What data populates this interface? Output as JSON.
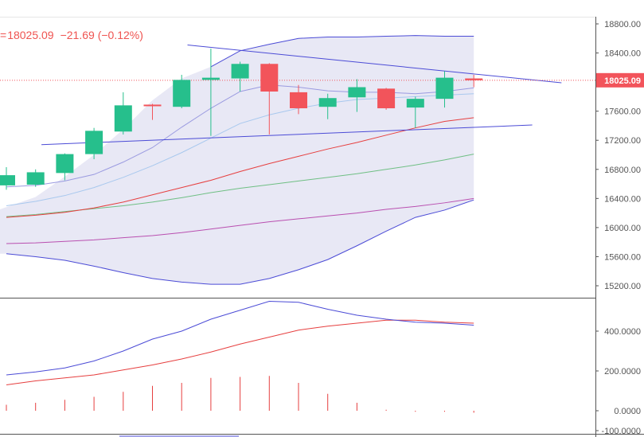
{
  "header": {
    "prefix": "=",
    "price": "18025.09",
    "change": "−21.69 (−0.12%)"
  },
  "colors": {
    "up": "#26bf8c",
    "down": "#f2545b",
    "band_fill": "#dcdcf0",
    "band_line": "#4b4bd6",
    "trendline": "#4b4bd6",
    "ma_fast": "#9a9ae0",
    "ma_mid": "#a8c8ee",
    "ma_red": "#e63f3f",
    "ma_green": "#6fbf84",
    "ma_purple": "#b94fb0",
    "macd": "#4b4bd6",
    "signal": "#e63f3f",
    "hist": "#e63f3f",
    "price_line": "#f2545b"
  },
  "chart_data": [
    {
      "type": "candlestick",
      "title": "",
      "y_ticks": [
        "18800.00",
        "18400.00",
        "18000.00",
        "17600.00",
        "17200.00",
        "16800.00",
        "16400.00",
        "16000.00",
        "15600.00",
        "15200.00"
      ],
      "ylim": [
        15050,
        18900
      ],
      "last_price_label": "18025.09",
      "last_price": 18025.09,
      "candles": [
        {
          "o": 16580,
          "h": 16830,
          "l": 16520,
          "c": 16720
        },
        {
          "o": 16590,
          "h": 16800,
          "l": 16560,
          "c": 16760
        },
        {
          "o": 16750,
          "h": 17020,
          "l": 16650,
          "c": 17010
        },
        {
          "o": 17010,
          "h": 17370,
          "l": 16940,
          "c": 17330
        },
        {
          "o": 17320,
          "h": 17860,
          "l": 17280,
          "c": 17680
        },
        {
          "o": 17690,
          "h": 17700,
          "l": 17480,
          "c": 17670
        },
        {
          "o": 17660,
          "h": 18100,
          "l": 17640,
          "c": 18030
        },
        {
          "o": 18030,
          "h": 18460,
          "l": 17260,
          "c": 18060
        },
        {
          "o": 18050,
          "h": 18280,
          "l": 17870,
          "c": 18250
        },
        {
          "o": 18250,
          "h": 18260,
          "l": 17280,
          "c": 17870
        },
        {
          "o": 17860,
          "h": 17960,
          "l": 17560,
          "c": 17640
        },
        {
          "o": 17660,
          "h": 17840,
          "l": 17490,
          "c": 17780
        },
        {
          "o": 17790,
          "h": 18040,
          "l": 17590,
          "c": 17930
        },
        {
          "o": 17910,
          "h": 17920,
          "l": 17620,
          "c": 17640
        },
        {
          "o": 17650,
          "h": 17800,
          "l": 17370,
          "c": 17770
        },
        {
          "o": 17770,
          "h": 18150,
          "l": 17650,
          "c": 18060
        },
        {
          "o": 18050,
          "h": 18100,
          "l": 17930,
          "c": 18025
        }
      ],
      "bollinger_upper": [
        null,
        null,
        null,
        null,
        null,
        null,
        null,
        18210,
        18430,
        18520,
        18600,
        18620,
        18620,
        18630,
        18640,
        18630,
        18630
      ],
      "bollinger_lower": [
        15640,
        15600,
        15550,
        15470,
        15380,
        15300,
        15250,
        15220,
        15220,
        15300,
        15420,
        15560,
        15750,
        15950,
        16140,
        16240,
        16380
      ],
      "ma_fast": [
        16560,
        16580,
        16640,
        16730,
        16900,
        17100,
        17380,
        17640,
        17870,
        17960,
        17930,
        17880,
        17860,
        17860,
        17840,
        17870,
        17920
      ],
      "ma_mid": [
        16300,
        16360,
        16440,
        16550,
        16690,
        16850,
        17030,
        17230,
        17430,
        17550,
        17640,
        17710,
        17760,
        17780,
        17800,
        17820,
        17840
      ],
      "ma_red": [
        16140,
        16170,
        16210,
        16270,
        16350,
        16450,
        16550,
        16650,
        16770,
        16880,
        16980,
        17080,
        17170,
        17270,
        17370,
        17460,
        17510
      ],
      "ma_green": [
        16150,
        16180,
        16220,
        16260,
        16300,
        16350,
        16410,
        16480,
        16540,
        16590,
        16640,
        16690,
        16740,
        16800,
        16860,
        16930,
        17010
      ],
      "ma_purple": [
        15780,
        15790,
        15810,
        15830,
        15860,
        15890,
        15930,
        15980,
        16030,
        16080,
        16120,
        16160,
        16200,
        16250,
        16290,
        16340,
        16400
      ],
      "trendlines": [
        {
          "from": {
            "i": 6.2,
            "v": 18510
          },
          "to": {
            "i": 19.0,
            "v": 17990
          }
        },
        {
          "from": {
            "i": 1.2,
            "v": 17140
          },
          "to": {
            "i": 18.0,
            "v": 17410
          }
        }
      ]
    },
    {
      "type": "macd",
      "y_ticks": [
        "400.0000",
        "200.0000",
        "0.0000",
        "-100.0000"
      ],
      "ylim": [
        -110,
        560
      ],
      "macd": [
        180,
        195,
        215,
        250,
        300,
        360,
        400,
        460,
        505,
        550,
        545,
        510,
        480,
        460,
        445,
        440,
        430
      ],
      "signal": [
        130,
        150,
        165,
        180,
        205,
        230,
        260,
        295,
        335,
        370,
        405,
        425,
        440,
        455,
        455,
        445,
        440
      ],
      "histogram": [
        30,
        40,
        55,
        70,
        95,
        125,
        140,
        165,
        170,
        175,
        140,
        85,
        40,
        5,
        -5,
        -5,
        -10
      ]
    }
  ]
}
